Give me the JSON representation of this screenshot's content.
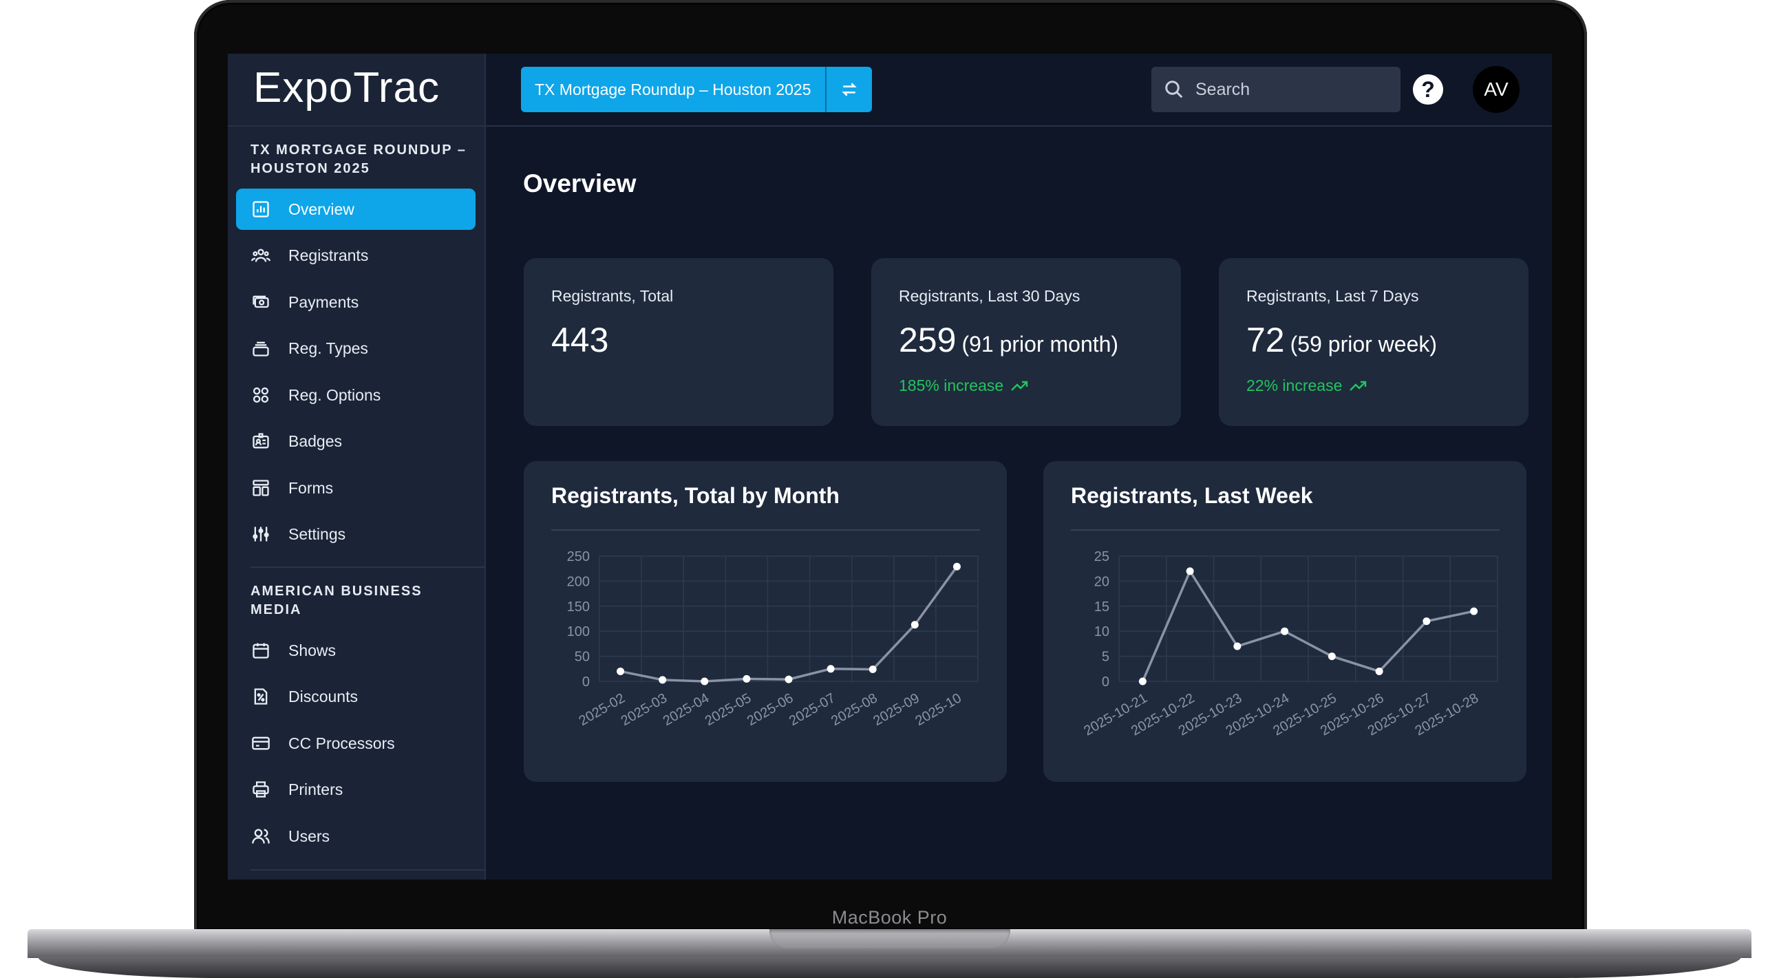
{
  "device": {
    "label": "MacBook Pro"
  },
  "app": {
    "logo": "ExpoTrac"
  },
  "sidebar": {
    "event_section": "TX MORTGAGE ROUNDUP – HOUSTON 2025",
    "event_items": [
      {
        "label": "Overview",
        "icon": "bar-chart-icon",
        "active": true
      },
      {
        "label": "Registrants",
        "icon": "users-group-icon"
      },
      {
        "label": "Payments",
        "icon": "money-icon"
      },
      {
        "label": "Reg. Types",
        "icon": "stack-icon"
      },
      {
        "label": "Reg. Options",
        "icon": "grid-icon"
      },
      {
        "label": "Badges",
        "icon": "badge-icon"
      },
      {
        "label": "Forms",
        "icon": "form-icon"
      },
      {
        "label": "Settings",
        "icon": "sliders-icon"
      }
    ],
    "org_section": "AMERICAN BUSINESS MEDIA",
    "org_items": [
      {
        "label": "Shows",
        "icon": "calendar-icon"
      },
      {
        "label": "Discounts",
        "icon": "discount-icon"
      },
      {
        "label": "CC Processors",
        "icon": "credit-card-icon"
      },
      {
        "label": "Printers",
        "icon": "printer-icon"
      },
      {
        "label": "Users",
        "icon": "users-icon"
      }
    ]
  },
  "topbar": {
    "event_name": "TX Mortgage Roundup – Houston 2025",
    "swap_icon": "swap-icon",
    "search_placeholder": "Search",
    "help": "?",
    "avatar": "AV"
  },
  "colors": {
    "accent": "#0ea5e9",
    "positive": "#22c55e",
    "background": "#0f1628",
    "card": "#1f2a3d"
  },
  "main": {
    "title": "Overview",
    "stats": [
      {
        "label": "Registrants, Total",
        "value": "443",
        "prior": "",
        "change": ""
      },
      {
        "label": "Registrants, Last 30 Days",
        "value": "259",
        "prior": "(91 prior month)",
        "change": "185% increase"
      },
      {
        "label": "Registrants, Last 7 Days",
        "value": "72",
        "prior": "(59 prior week)",
        "change": "22% increase"
      }
    ]
  },
  "chart_data": [
    {
      "type": "line",
      "title": "Registrants, Total by Month",
      "categories": [
        "2025-02",
        "2025-03",
        "2025-04",
        "2025-05",
        "2025-06",
        "2025-07",
        "2025-08",
        "2025-09",
        "2025-10"
      ],
      "values": [
        20,
        3,
        0,
        5,
        4,
        25,
        24,
        113,
        229
      ],
      "ylim": [
        0,
        250
      ],
      "yticks": [
        0,
        50,
        100,
        150,
        200,
        250
      ],
      "grid": true,
      "xlabel": "",
      "ylabel": ""
    },
    {
      "type": "line",
      "title": "Registrants, Last Week",
      "categories": [
        "2025-10-21",
        "2025-10-22",
        "2025-10-23",
        "2025-10-24",
        "2025-10-25",
        "2025-10-26",
        "2025-10-27",
        "2025-10-28"
      ],
      "values": [
        0,
        22,
        7,
        10,
        5,
        2,
        12,
        14
      ],
      "ylim": [
        0,
        25
      ],
      "yticks": [
        0,
        5,
        10,
        15,
        20,
        25
      ],
      "grid": true,
      "xlabel": "",
      "ylabel": ""
    }
  ]
}
